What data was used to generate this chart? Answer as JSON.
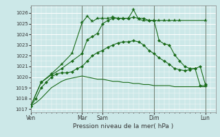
{
  "bg_color": "#cce8e8",
  "grid_color_major": "#ffffff",
  "grid_color_minor": "#e8f4f4",
  "line_color": "#1a6b1a",
  "ylim": [
    1016.7,
    1026.7
  ],
  "yticks": [
    1017,
    1018,
    1019,
    1020,
    1021,
    1022,
    1023,
    1024,
    1025,
    1026
  ],
  "xlabel": "Pression niveau de la mer( hPa )",
  "day_labels": [
    "Ven",
    "Mar",
    "Sam",
    "Dim",
    "Lun"
  ],
  "day_positions": [
    0,
    60,
    84,
    144,
    204
  ],
  "xlim": [
    0,
    216
  ],
  "line1_x": [
    0,
    6,
    12,
    18,
    24,
    30,
    36,
    42,
    48,
    54,
    60,
    66,
    72,
    78,
    84,
    90,
    96,
    102,
    108,
    114,
    120,
    126,
    132,
    138,
    144,
    150,
    156,
    162,
    168,
    174,
    180,
    186,
    192,
    198,
    204
  ],
  "line1_y": [
    1017.3,
    1017.6,
    1018.0,
    1018.5,
    1019.0,
    1019.3,
    1019.6,
    1019.8,
    1019.9,
    1020.0,
    1020.1,
    1020.0,
    1019.9,
    1019.8,
    1019.8,
    1019.7,
    1019.6,
    1019.6,
    1019.5,
    1019.5,
    1019.4,
    1019.4,
    1019.3,
    1019.3,
    1019.2,
    1019.2,
    1019.2,
    1019.2,
    1019.1,
    1019.1,
    1019.1,
    1019.1,
    1019.1,
    1019.1,
    1019.1
  ],
  "line2_x": [
    0,
    6,
    12,
    18,
    24,
    30,
    36,
    42,
    48,
    54,
    60,
    66,
    72,
    78,
    84,
    90,
    96,
    102,
    108,
    114,
    120,
    126,
    132,
    138,
    144,
    150,
    156,
    162,
    168,
    174,
    180,
    186,
    192,
    198,
    204
  ],
  "line2_y": [
    1017.3,
    1018.0,
    1019.0,
    1019.5,
    1020.0,
    1020.3,
    1020.4,
    1020.4,
    1020.5,
    1020.8,
    1021.0,
    1021.5,
    1022.0,
    1022.3,
    1022.5,
    1022.8,
    1023.0,
    1023.2,
    1023.3,
    1023.3,
    1023.4,
    1023.3,
    1023.0,
    1022.5,
    1022.2,
    1021.8,
    1021.5,
    1021.2,
    1020.8,
    1020.7,
    1020.6,
    1020.7,
    1020.8,
    1019.2,
    1019.2
  ],
  "line3_x": [
    0,
    12,
    24,
    36,
    48,
    60,
    66,
    72,
    78,
    84,
    90,
    96,
    102,
    108,
    114,
    120,
    126,
    132,
    138,
    144,
    150,
    156,
    162,
    168,
    174,
    180,
    186,
    192,
    198,
    204
  ],
  "line3_y": [
    1017.3,
    1019.5,
    1020.2,
    1020.8,
    1021.5,
    1022.2,
    1023.5,
    1023.8,
    1024.1,
    1025.0,
    1025.3,
    1025.5,
    1025.5,
    1025.5,
    1025.5,
    1025.6,
    1025.5,
    1025.5,
    1025.3,
    1025.3,
    1023.4,
    1023.1,
    1023.0,
    1022.1,
    1021.5,
    1021.0,
    1020.8,
    1020.8,
    1021.0,
    1019.3
  ],
  "line4_x": [
    0,
    12,
    24,
    36,
    48,
    60,
    66,
    72,
    78,
    84,
    90,
    96,
    102,
    108,
    114,
    120,
    126,
    132,
    138,
    144,
    150,
    156,
    162,
    168,
    174,
    204
  ],
  "line4_y": [
    1017.3,
    1019.5,
    1020.3,
    1021.2,
    1022.2,
    1025.1,
    1025.7,
    1025.2,
    1025.5,
    1025.5,
    1025.5,
    1025.6,
    1025.5,
    1025.5,
    1025.5,
    1026.3,
    1025.4,
    1025.3,
    1025.3,
    1025.3,
    1025.3,
    1025.3,
    1025.3,
    1025.3,
    1025.3,
    1025.3
  ]
}
